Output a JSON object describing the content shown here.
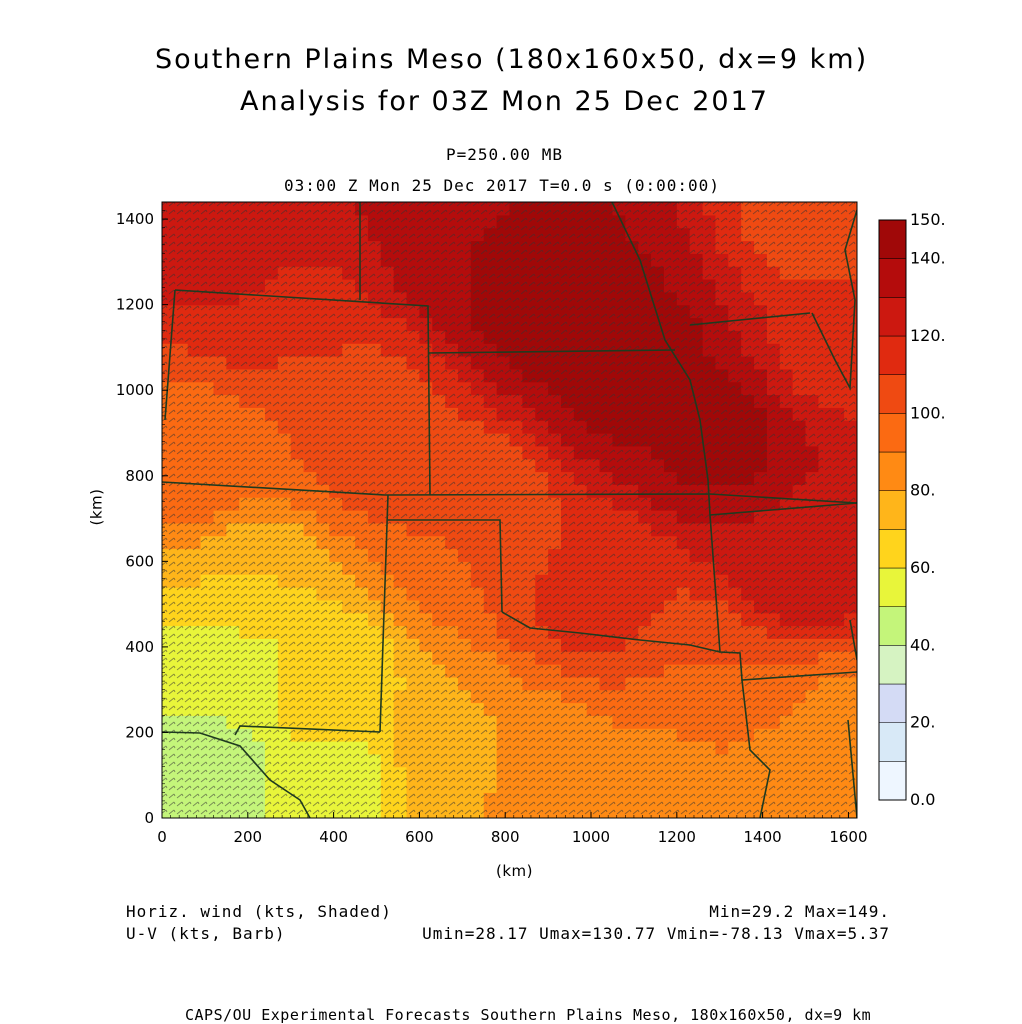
{
  "header": {
    "title_line1": "Southern Plains Meso (180x160x50, dx=9 km)",
    "title_line2": "Analysis for 03Z Mon 25 Dec 2017",
    "level": "P=250.00 MB",
    "time_line": "03:00 Z Mon 25 Dec 2017   T=0.0 s (0:00:00)"
  },
  "footer": {
    "field1": "Horiz. wind (kts, Shaded)",
    "field2": "U-V (kts, Barb)",
    "minmax": "Min=29.2 Max=149.",
    "uv_stats": "Umin=28.17 Umax=130.77 Vmin=-78.13 Vmax=5.37",
    "credit": "CAPS/OU Experimental Forecasts  Southern Plains Meso, 180x160x50, dx=9 km"
  },
  "chart_data": {
    "type": "heatmap",
    "title": "Southern Plains Meso (180x160x50, dx=9 km)",
    "subtitle": "Analysis for 03Z Mon 25 Dec 2017",
    "field": "Horiz. wind (kts, Shaded)",
    "overlay": "U-V (kts, Barb)",
    "xlabel": "(km)",
    "ylabel": "(km)",
    "xlim": [
      0,
      1620
    ],
    "ylim": [
      0,
      1440
    ],
    "xticks": [
      "0",
      "200",
      "400",
      "600",
      "800",
      "1000",
      "1200",
      "1400",
      "1600"
    ],
    "yticks": [
      "0",
      "200",
      "400",
      "600",
      "800",
      "1000",
      "1200",
      "1400"
    ],
    "colorbar": {
      "levels": [
        0,
        10,
        20,
        30,
        40,
        50,
        60,
        70,
        80,
        90,
        100,
        110,
        120,
        130,
        140,
        150
      ],
      "labels": [
        "0.0",
        "20.",
        "40.",
        "60.",
        "80.",
        "100.",
        "120.",
        "140.",
        "150."
      ],
      "colors": [
        "#eef6ff",
        "#d8e9f7",
        "#d4dbf5",
        "#d6f3c2",
        "#c4f57a",
        "#e8f53a",
        "#ffd41c",
        "#ffb51a",
        "#ff8a14",
        "#fb6a12",
        "#ef4a12",
        "#e02a10",
        "#cc1810",
        "#b40c0c",
        "#a00808"
      ]
    },
    "min": 29.2,
    "max": 149,
    "umin": 28.17,
    "umax": 130.77,
    "vmin": -78.13,
    "vmax": 5.37,
    "field_points": [
      {
        "x": 900,
        "y": 1200,
        "v": 145
      },
      {
        "x": 1300,
        "y": 900,
        "v": 142
      },
      {
        "x": 1100,
        "y": 1050,
        "v": 144
      },
      {
        "x": 700,
        "y": 1380,
        "v": 140
      },
      {
        "x": 1500,
        "y": 600,
        "v": 128
      },
      {
        "x": 1550,
        "y": 1100,
        "v": 118
      },
      {
        "x": 1580,
        "y": 1400,
        "v": 102
      },
      {
        "x": 1600,
        "y": 200,
        "v": 88
      },
      {
        "x": 1300,
        "y": 300,
        "v": 100
      },
      {
        "x": 1000,
        "y": 500,
        "v": 112
      },
      {
        "x": 700,
        "y": 700,
        "v": 100
      },
      {
        "x": 500,
        "y": 900,
        "v": 108
      },
      {
        "x": 300,
        "y": 1200,
        "v": 120
      },
      {
        "x": 100,
        "y": 1400,
        "v": 125
      },
      {
        "x": 350,
        "y": 950,
        "v": 100
      },
      {
        "x": 100,
        "y": 800,
        "v": 92
      },
      {
        "x": 200,
        "y": 550,
        "v": 70
      },
      {
        "x": 150,
        "y": 350,
        "v": 55
      },
      {
        "x": 350,
        "y": 300,
        "v": 62
      },
      {
        "x": 100,
        "y": 100,
        "v": 40
      },
      {
        "x": 400,
        "y": 80,
        "v": 58
      },
      {
        "x": 700,
        "y": 150,
        "v": 78
      },
      {
        "x": 900,
        "y": 150,
        "v": 88
      },
      {
        "x": 1200,
        "y": 80,
        "v": 85
      },
      {
        "x": 1450,
        "y": 80,
        "v": 80
      }
    ]
  }
}
